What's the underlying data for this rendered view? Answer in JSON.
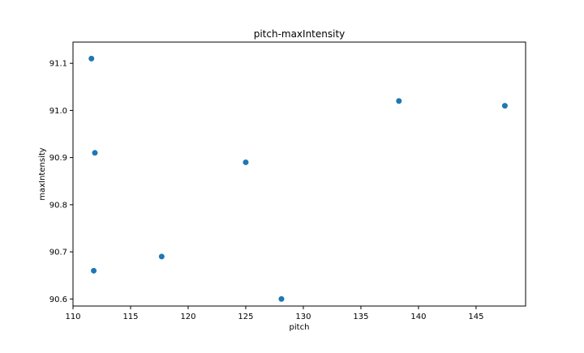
{
  "chart_data": {
    "type": "scatter",
    "title": "pitch-maxIntensity",
    "xlabel": "pitch",
    "ylabel": "maxIntensity",
    "xlim": [
      110,
      149.3
    ],
    "ylim": [
      90.585,
      91.145
    ],
    "xticks": [
      110,
      115,
      120,
      125,
      130,
      135,
      140,
      145
    ],
    "yticks": [
      90.6,
      90.7,
      90.8,
      90.9,
      91.0,
      91.1
    ],
    "xtick_labels": [
      "110",
      "115",
      "120",
      "125",
      "130",
      "135",
      "140",
      "145"
    ],
    "ytick_labels": [
      "90.6",
      "90.7",
      "90.8",
      "90.9",
      "91.0",
      "91.1"
    ],
    "grid": false,
    "legend": "none",
    "marker_color": "#1f77b4",
    "series": [
      {
        "x": [
          111.6,
          111.9,
          111.8,
          117.7,
          125.0,
          128.1,
          138.3,
          147.5
        ],
        "y": [
          91.11,
          90.91,
          90.66,
          90.69,
          90.89,
          90.6,
          91.02,
          91.01
        ]
      }
    ]
  }
}
